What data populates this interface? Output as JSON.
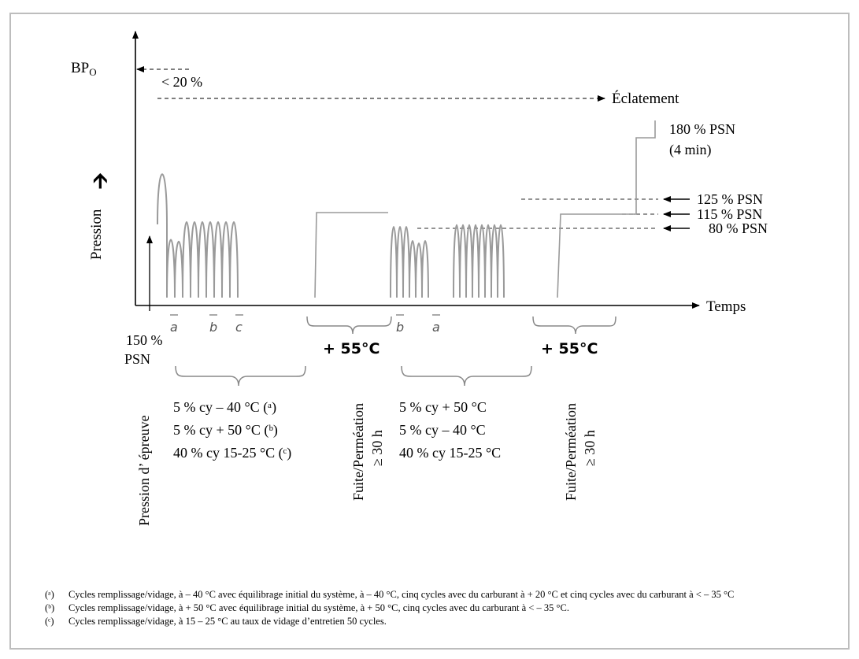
{
  "labels": {
    "bpo": "BP",
    "bpo_sub": "O",
    "lt20": "< 20 %",
    "eclatement": "Éclatement",
    "psn180_l1": "180 % PSN",
    "psn180_l2": "(4 min)",
    "psn125": "125 % PSN",
    "psn115": "115 % PSN",
    "psn80": "80 % PSN",
    "temps": "Temps",
    "pression": "Pression",
    "up_arrow": "🡩",
    "psn150_l1": "150 %",
    "psn150_l2": "PSN",
    "pression_epreuve": "Pression d’ épreuve",
    "a": "a",
    "b": "b",
    "c": "c",
    "plus55": "+ 55°C",
    "fuite": "Fuite/Perméation",
    "ge30h": "≥ 30 h"
  },
  "groups": {
    "first": [
      "5 % cy – 40 °C (ᵃ)",
      "5 % cy + 50 °C (ᵇ)",
      "40 % cy 15-25 °C (ᶜ)"
    ],
    "second": [
      "5 % cy + 50 °C",
      "5 % cy – 40 °C",
      "40 % cy 15-25 °C"
    ]
  },
  "footnotes": [
    {
      "mark": "(ᵃ)",
      "text": "Cycles remplissage/vidage, à – 40 °C avec équilibrage initial du système, à – 40 °C, cinq cycles avec du carburant à + 20 °C et cinq cycles avec du carburant à < – 35 °C"
    },
    {
      "mark": "(ᵇ)",
      "text": "Cycles remplissage/vidage, à + 50 °C avec équilibrage initial du système, à + 50 °C, cinq cycles avec du carburant à < – 35 °C."
    },
    {
      "mark": "(ᶜ)",
      "text": "Cycles remplissage/vidage, à 15 – 25 °C au taux de vidage d’entretien 50 cycles."
    }
  ],
  "colors": {
    "curve": "#9a9a9a",
    "dash": "#555555",
    "frame": "#bdbdbd"
  }
}
